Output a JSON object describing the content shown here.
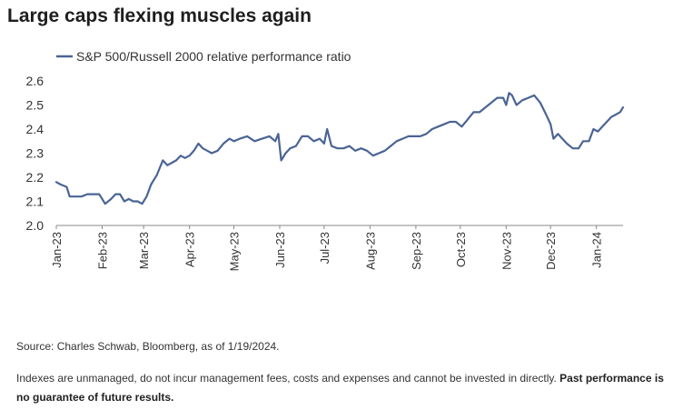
{
  "page": {
    "title": "Large caps flexing muscles again",
    "source": "Source: Charles Schwab, Bloomberg, as of 1/19/2024.",
    "disclaimer": "Indexes are unmanaged, do not incur management fees, costs and expenses and cannot be invested in directly. ",
    "disclaimer_bold": "Past performance is no guarantee of future results."
  },
  "colors": {
    "line": "#4a6494",
    "axis": "#888888"
  },
  "chart_data": {
    "type": "line",
    "title": "Large caps flexing muscles again",
    "xlabel": "",
    "ylabel": "",
    "legend": "top-left",
    "grid": false,
    "ylim": [
      2.0,
      2.6
    ],
    "yticks": [
      "2.0",
      "2.1",
      "2.2",
      "2.3",
      "2.4",
      "2.5",
      "2.6"
    ],
    "x_tick_labels": [
      "Jan-23",
      "Feb-23",
      "Mar-23",
      "Apr-23",
      "May-23",
      "Jun-23",
      "Jul-23",
      "Aug-23",
      "Sep-23",
      "Oct-23",
      "Nov-23",
      "Dec-23",
      "Jan-24"
    ],
    "x_tick_dates": [
      "2023-01-01",
      "2023-02-01",
      "2023-03-01",
      "2023-04-01",
      "2023-05-01",
      "2023-06-01",
      "2023-07-01",
      "2023-08-01",
      "2023-09-01",
      "2023-10-01",
      "2023-11-01",
      "2023-12-01",
      "2024-01-01"
    ],
    "xlim": [
      "2023-01-01",
      "2024-01-19"
    ],
    "series": [
      {
        "name": "S&P 500/Russell 2000 relative performance ratio",
        "x": [
          "2023-01-01",
          "2023-01-04",
          "2023-01-08",
          "2023-01-10",
          "2023-01-13",
          "2023-01-18",
          "2023-01-22",
          "2023-01-26",
          "2023-01-30",
          "2023-02-03",
          "2023-02-07",
          "2023-02-10",
          "2023-02-13",
          "2023-02-16",
          "2023-02-19",
          "2023-02-22",
          "2023-02-25",
          "2023-02-28",
          "2023-03-03",
          "2023-03-06",
          "2023-03-08",
          "2023-03-10",
          "2023-03-12",
          "2023-03-14",
          "2023-03-17",
          "2023-03-20",
          "2023-03-23",
          "2023-03-26",
          "2023-03-29",
          "2023-04-01",
          "2023-04-04",
          "2023-04-07",
          "2023-04-10",
          "2023-04-13",
          "2023-04-16",
          "2023-04-20",
          "2023-04-24",
          "2023-04-28",
          "2023-05-01",
          "2023-05-05",
          "2023-05-10",
          "2023-05-15",
          "2023-05-20",
          "2023-05-25",
          "2023-05-29",
          "2023-05-31",
          "2023-06-02",
          "2023-06-05",
          "2023-06-08",
          "2023-06-12",
          "2023-06-16",
          "2023-06-20",
          "2023-06-24",
          "2023-06-28",
          "2023-07-01",
          "2023-07-03",
          "2023-07-06",
          "2023-07-10",
          "2023-07-14",
          "2023-07-18",
          "2023-07-22",
          "2023-07-26",
          "2023-07-30",
          "2023-08-03",
          "2023-08-07",
          "2023-08-11",
          "2023-08-15",
          "2023-08-19",
          "2023-08-23",
          "2023-08-27",
          "2023-08-31",
          "2023-09-04",
          "2023-09-08",
          "2023-09-12",
          "2023-09-16",
          "2023-09-20",
          "2023-09-24",
          "2023-09-28",
          "2023-10-02",
          "2023-10-06",
          "2023-10-10",
          "2023-10-14",
          "2023-10-18",
          "2023-10-22",
          "2023-10-26",
          "2023-10-30",
          "2023-11-01",
          "2023-11-03",
          "2023-11-05",
          "2023-11-08",
          "2023-11-12",
          "2023-11-16",
          "2023-11-20",
          "2023-11-24",
          "2023-11-28",
          "2023-12-01",
          "2023-12-03",
          "2023-12-06",
          "2023-12-09",
          "2023-12-12",
          "2023-12-16",
          "2023-12-20",
          "2023-12-23",
          "2023-12-27",
          "2023-12-30",
          "2024-01-02",
          "2024-01-05",
          "2024-01-08",
          "2024-01-11",
          "2024-01-14",
          "2024-01-17",
          "2024-01-19"
        ],
        "values": [
          2.18,
          2.17,
          2.16,
          2.12,
          2.12,
          2.12,
          2.13,
          2.13,
          2.13,
          2.09,
          2.11,
          2.13,
          2.13,
          2.1,
          2.11,
          2.1,
          2.1,
          2.09,
          2.12,
          2.17,
          2.19,
          2.21,
          2.24,
          2.27,
          2.25,
          2.26,
          2.27,
          2.29,
          2.28,
          2.29,
          2.31,
          2.34,
          2.32,
          2.31,
          2.3,
          2.31,
          2.34,
          2.36,
          2.35,
          2.36,
          2.37,
          2.35,
          2.36,
          2.37,
          2.35,
          2.38,
          2.27,
          2.3,
          2.32,
          2.33,
          2.37,
          2.37,
          2.35,
          2.36,
          2.34,
          2.4,
          2.33,
          2.32,
          2.32,
          2.33,
          2.31,
          2.32,
          2.31,
          2.29,
          2.3,
          2.31,
          2.33,
          2.35,
          2.36,
          2.37,
          2.37,
          2.37,
          2.38,
          2.4,
          2.41,
          2.42,
          2.43,
          2.43,
          2.41,
          2.44,
          2.47,
          2.47,
          2.49,
          2.51,
          2.53,
          2.53,
          2.5,
          2.55,
          2.54,
          2.5,
          2.52,
          2.53,
          2.54,
          2.51,
          2.46,
          2.42,
          2.36,
          2.38,
          2.36,
          2.34,
          2.32,
          2.32,
          2.35,
          2.35,
          2.4,
          2.39,
          2.41,
          2.43,
          2.45,
          2.46,
          2.47,
          2.49
        ]
      }
    ]
  }
}
